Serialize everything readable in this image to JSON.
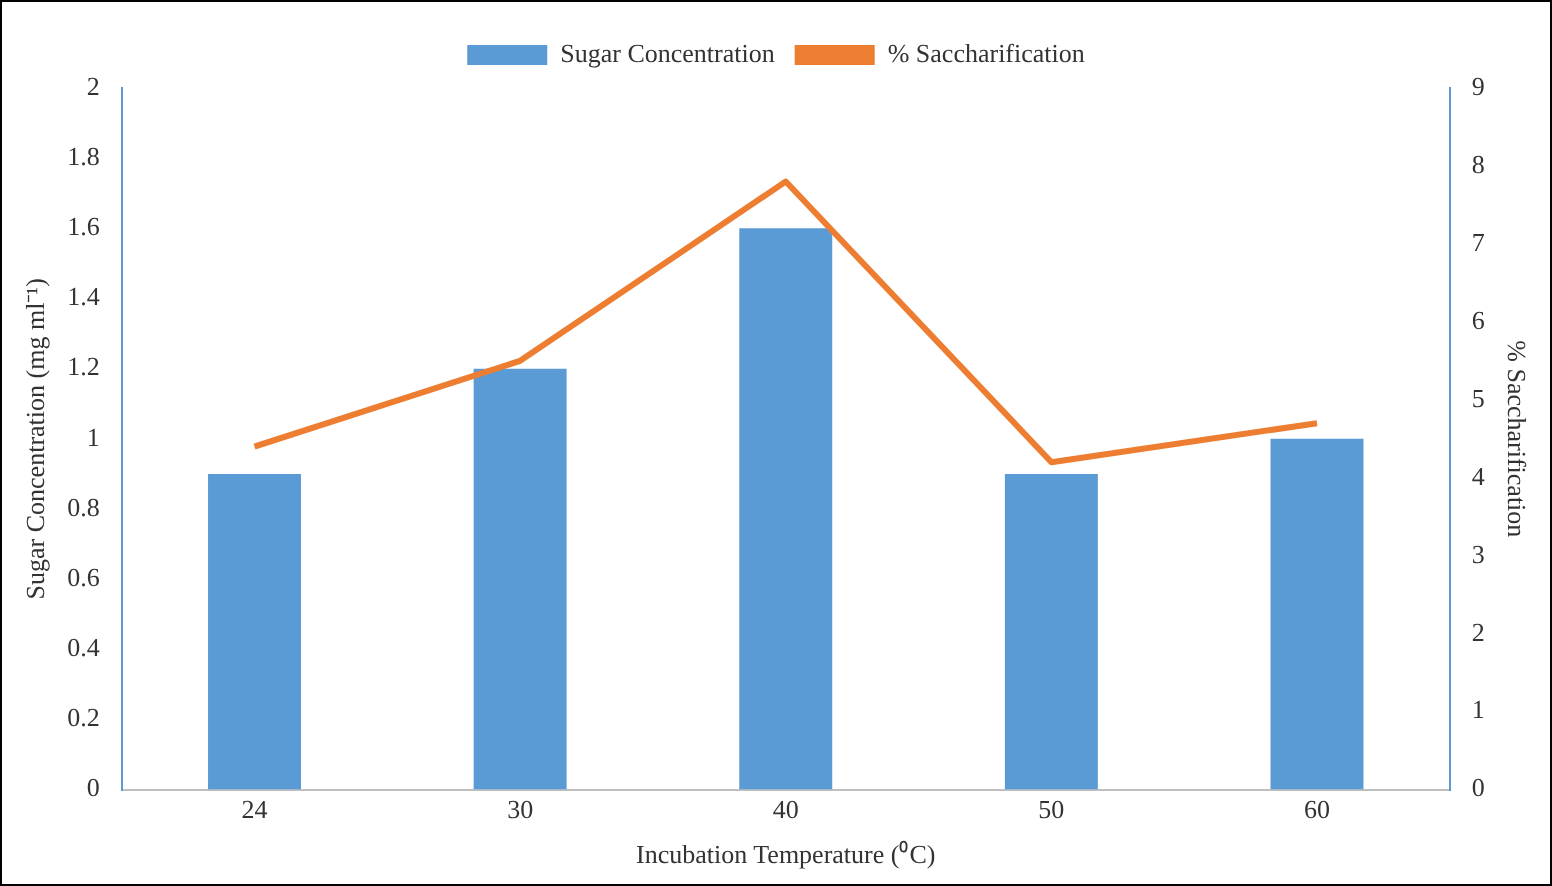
{
  "chart_data": {
    "type": "bar",
    "xlabel": "Incubation Temperature (⁰C)",
    "ylabel": "Sugar Concentration (mg ml⁻¹)",
    "y2label": "% Saccharification",
    "categories": [
      "24",
      "30",
      "40",
      "50",
      "60"
    ],
    "series": [
      {
        "name": "Sugar Concentration",
        "color": "#5b9bd5",
        "values": [
          0.9,
          1.2,
          1.6,
          0.9,
          1.0
        ]
      },
      {
        "name": "% Saccharification",
        "type": "line",
        "axis": "y2",
        "color": "#ed7d31",
        "marker": "none",
        "values": [
          4.4,
          5.5,
          7.8,
          4.2,
          4.7
        ]
      }
    ],
    "ylim": [
      0,
      2
    ],
    "yticks": [
      0,
      0.2,
      0.4,
      0.6,
      0.8,
      1,
      1.2,
      1.4,
      1.6,
      1.8,
      2
    ],
    "y2lim": [
      0,
      9
    ],
    "y2ticks": [
      0,
      1,
      2,
      3,
      4,
      5,
      6,
      7,
      8,
      9
    ],
    "grid": false,
    "legend": "top"
  }
}
